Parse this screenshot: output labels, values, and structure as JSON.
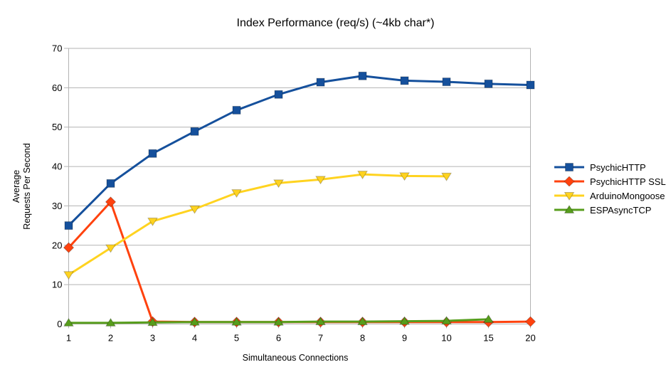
{
  "chart_data": {
    "type": "line",
    "title": "Index Performance (req/s) (~4kb char*)",
    "xlabel": "Simultaneous Connections",
    "ylabel": "Average Requests Per Second",
    "ylabel_lines": [
      "Average",
      "Requests Per Second"
    ],
    "categories": [
      "1",
      "2",
      "3",
      "4",
      "5",
      "6",
      "7",
      "8",
      "9",
      "10",
      "15",
      "20"
    ],
    "ylim": [
      0,
      70
    ],
    "yticks": [
      0,
      10,
      20,
      30,
      40,
      50,
      60,
      70
    ],
    "grid": "horizontal",
    "legend_position": "right",
    "colors": {
      "grid_and_border": "#b3b3b3",
      "text": "#000000"
    },
    "series": [
      {
        "name": "PsychicHTTP",
        "color": "#15509c",
        "marker": "square",
        "values": [
          25.0,
          35.7,
          43.3,
          48.9,
          54.3,
          58.3,
          61.4,
          63.0,
          61.8,
          61.5,
          61.0,
          60.7
        ]
      },
      {
        "name": "PsychicHTTP SSL",
        "color": "#ff420e",
        "marker": "diamond",
        "values": [
          19.4,
          31.0,
          0.6,
          0.5,
          0.5,
          0.5,
          0.5,
          0.5,
          0.5,
          0.5,
          0.5,
          0.6
        ]
      },
      {
        "name": "ArduinoMongoose",
        "color": "#ffd320",
        "marker": "triangle-down",
        "values": [
          12.5,
          19.3,
          26.1,
          29.2,
          33.3,
          35.8,
          36.7,
          38.0,
          37.6,
          37.5,
          null,
          null
        ]
      },
      {
        "name": "ESPAsyncTCP",
        "color": "#579d1c",
        "marker": "triangle-up",
        "values": [
          0.3,
          0.3,
          0.4,
          0.5,
          0.5,
          0.5,
          0.6,
          0.6,
          0.7,
          0.8,
          1.2,
          null
        ]
      }
    ]
  }
}
